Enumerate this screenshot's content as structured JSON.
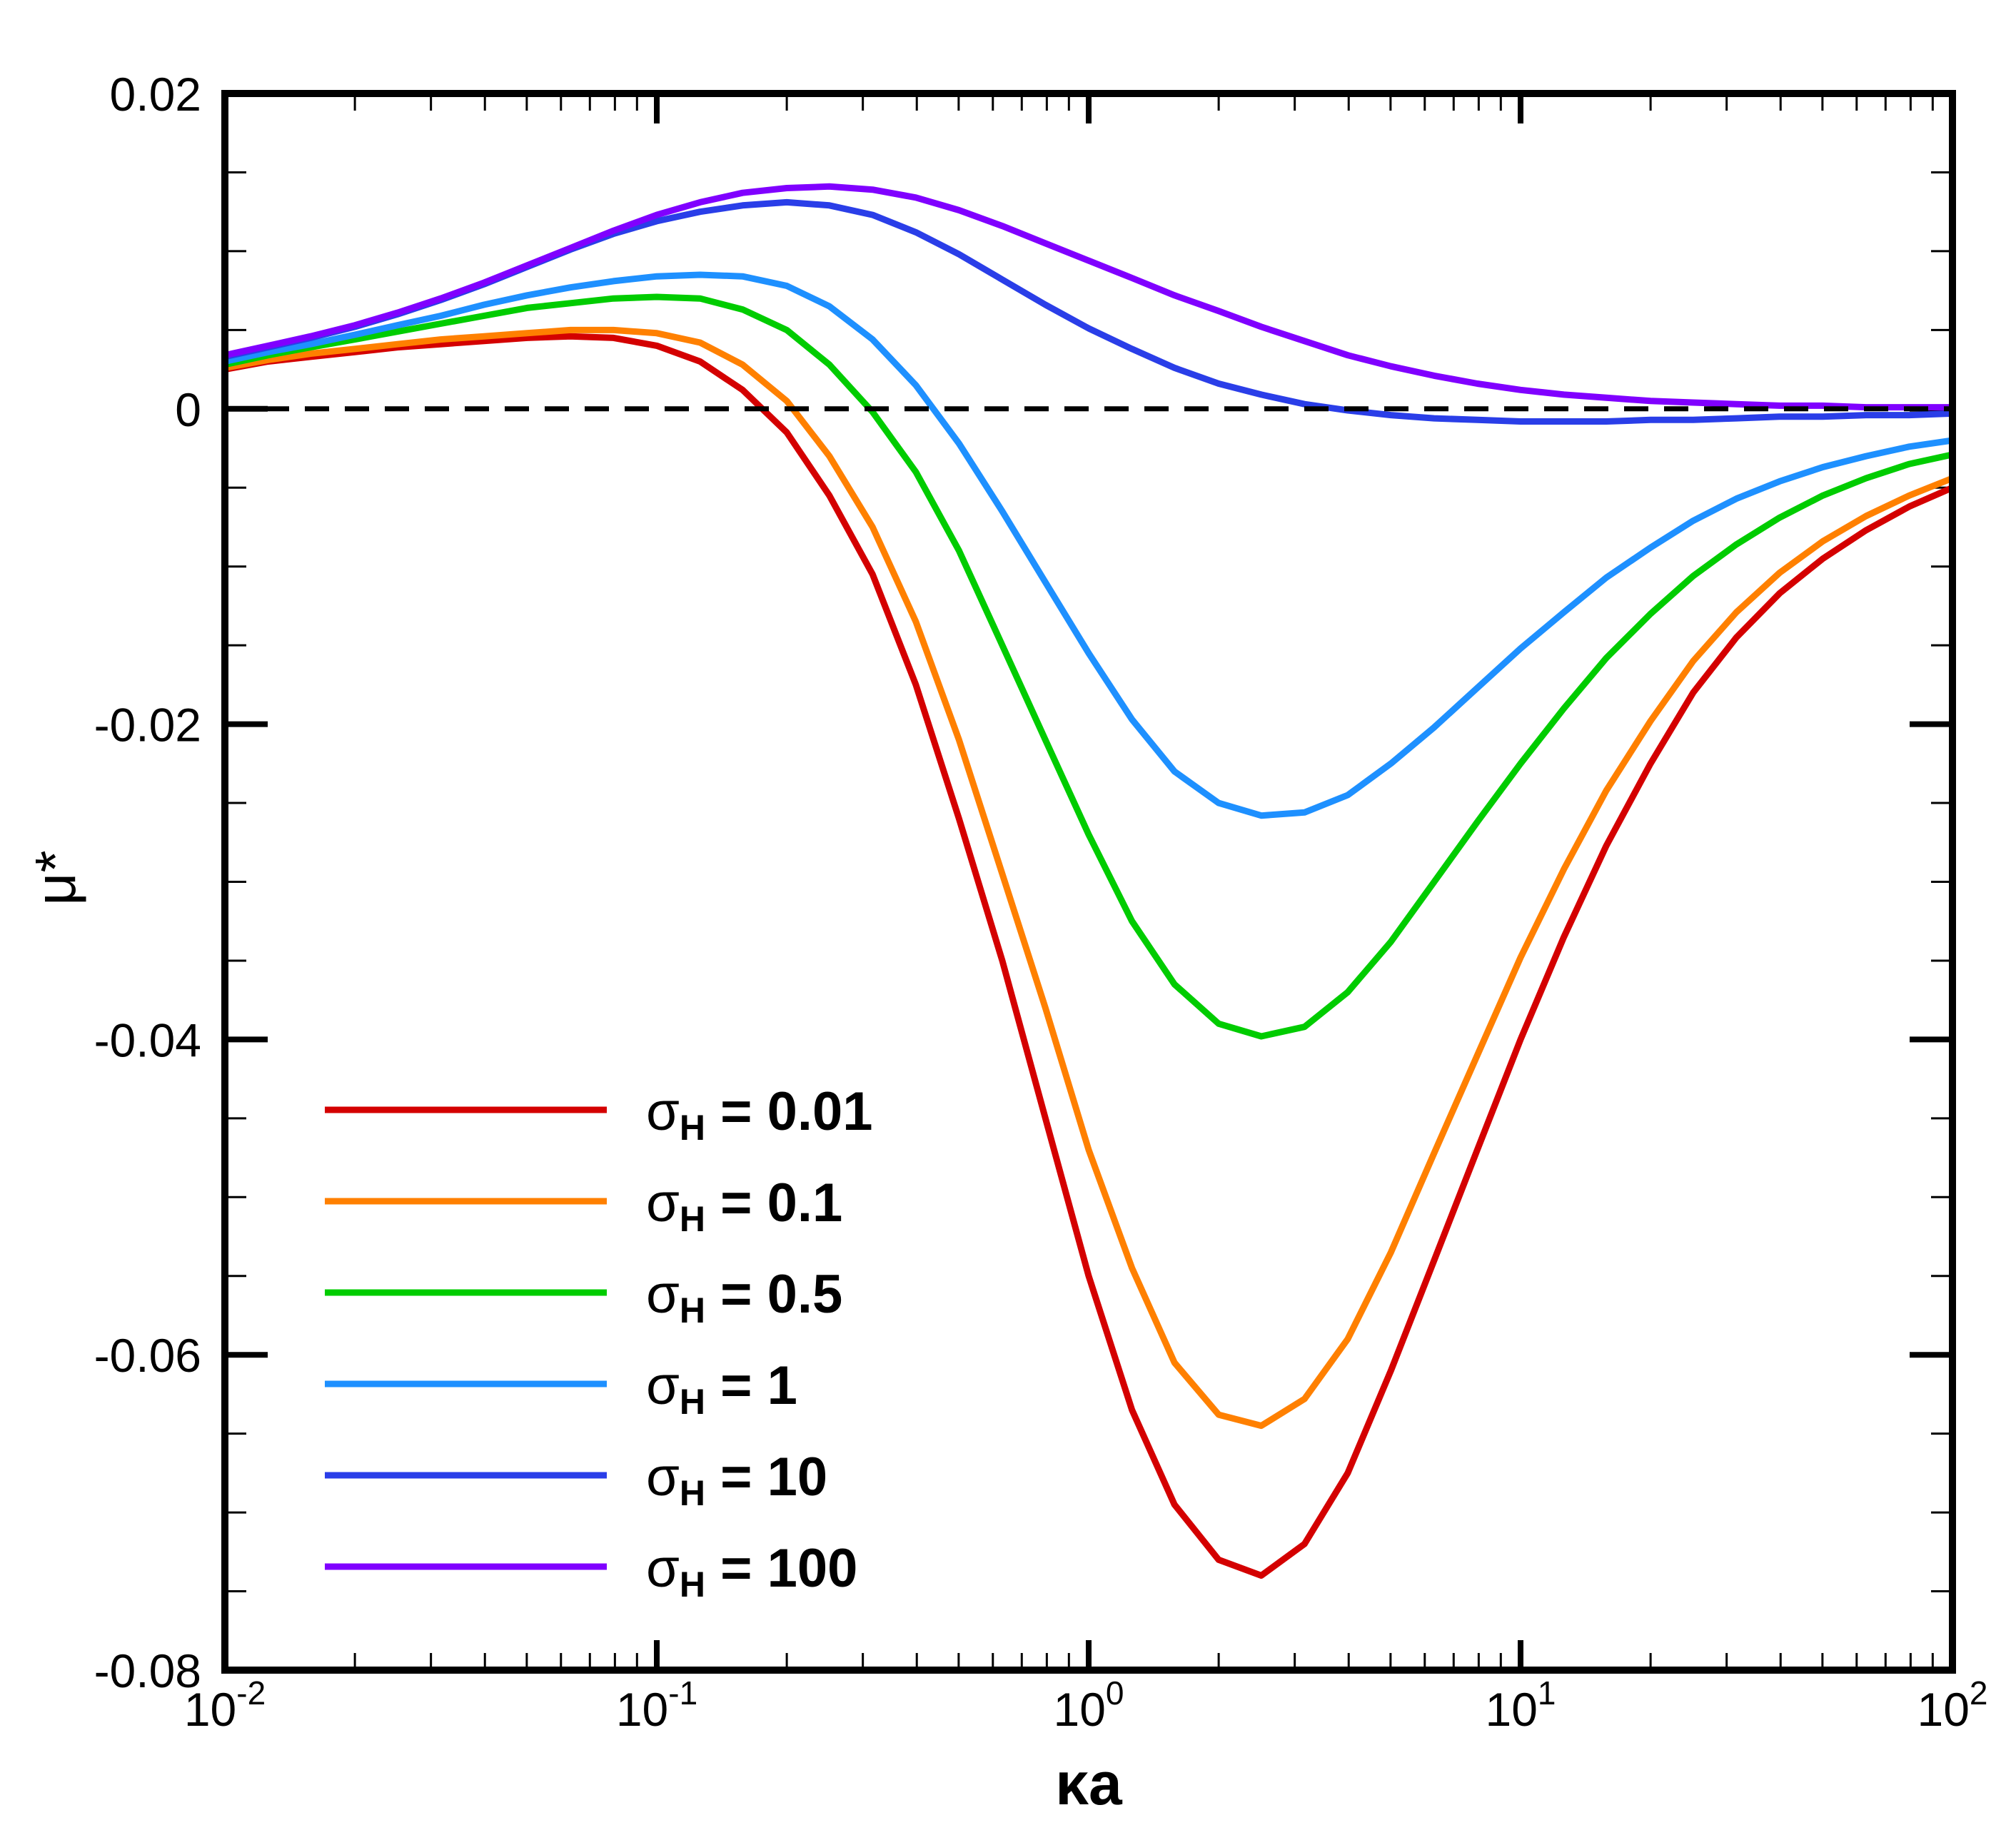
{
  "chart_data": {
    "type": "line",
    "title": "",
    "xlabel": "κa",
    "ylabel": "μ*",
    "xscale": "log",
    "xlim": [
      0.01,
      100
    ],
    "ylim": [
      -0.08,
      0.02
    ],
    "grid": false,
    "legend_position": "bottom-left",
    "x_ticks": [
      {
        "base": "10",
        "exp": "-2"
      },
      {
        "base": "10",
        "exp": "-1"
      },
      {
        "base": "10",
        "exp": "0"
      },
      {
        "base": "10",
        "exp": "1"
      },
      {
        "base": "10",
        "exp": "2"
      }
    ],
    "y_ticks": [
      "0.02",
      "0",
      "-0.02",
      "-0.04",
      "-0.06",
      "-0.08"
    ],
    "reference_line": {
      "y": 0,
      "style": "dashed",
      "color": "#000000"
    },
    "x": [
      0.01,
      0.0126,
      0.0158,
      0.02,
      0.0251,
      0.0316,
      0.0398,
      0.0501,
      0.0631,
      0.0794,
      0.1,
      0.126,
      0.158,
      0.2,
      0.251,
      0.316,
      0.398,
      0.501,
      0.631,
      0.794,
      1,
      1.26,
      1.58,
      2,
      2.51,
      3.16,
      3.98,
      5.01,
      6.31,
      7.94,
      10,
      12.6,
      15.8,
      20,
      25.1,
      31.6,
      39.8,
      50.1,
      63.1,
      79.4,
      100
    ],
    "series": [
      {
        "name": "σ_H = 0.01",
        "label_main": "σ",
        "label_sub": "H",
        "label_rest": " = 0.01",
        "color": "#d40000",
        "values": [
          0.0025,
          0.003,
          0.0033,
          0.0036,
          0.0039,
          0.0041,
          0.0043,
          0.0045,
          0.0046,
          0.0045,
          0.004,
          0.003,
          0.0012,
          -0.0015,
          -0.0055,
          -0.0105,
          -0.0175,
          -0.026,
          -0.035,
          -0.045,
          -0.055,
          -0.0635,
          -0.0695,
          -0.073,
          -0.074,
          -0.072,
          -0.0675,
          -0.061,
          -0.054,
          -0.047,
          -0.04,
          -0.0335,
          -0.0277,
          -0.0225,
          -0.018,
          -0.0145,
          -0.0117,
          -0.0095,
          -0.0077,
          -0.0062,
          -0.005
        ]
      },
      {
        "name": "σ_H = 0.1",
        "label_main": "σ",
        "label_sub": "H",
        "label_rest": " = 0.1",
        "color": "#ff8000",
        "values": [
          0.0026,
          0.0031,
          0.0035,
          0.0038,
          0.0041,
          0.0044,
          0.0046,
          0.0048,
          0.005,
          0.005,
          0.0048,
          0.0042,
          0.0028,
          0.0005,
          -0.003,
          -0.0075,
          -0.0135,
          -0.021,
          -0.0295,
          -0.038,
          -0.047,
          -0.0545,
          -0.0605,
          -0.0638,
          -0.0645,
          -0.0628,
          -0.059,
          -0.0535,
          -0.0472,
          -0.041,
          -0.0348,
          -0.0292,
          -0.0242,
          -0.0198,
          -0.016,
          -0.0129,
          -0.0104,
          -0.0084,
          -0.0068,
          -0.0055,
          -0.0044
        ]
      },
      {
        "name": "σ_H = 0.5",
        "label_main": "σ",
        "label_sub": "H",
        "label_rest": " = 0.5",
        "color": "#00cc00",
        "values": [
          0.0028,
          0.0034,
          0.0039,
          0.0044,
          0.0049,
          0.0054,
          0.0059,
          0.0064,
          0.0067,
          0.007,
          0.0071,
          0.007,
          0.0063,
          0.005,
          0.0028,
          -0.0002,
          -0.004,
          -0.009,
          -0.015,
          -0.021,
          -0.027,
          -0.0325,
          -0.0365,
          -0.039,
          -0.0398,
          -0.0392,
          -0.037,
          -0.0338,
          -0.03,
          -0.0262,
          -0.0225,
          -0.019,
          -0.0158,
          -0.013,
          -0.0106,
          -0.0086,
          -0.0069,
          -0.0055,
          -0.0044,
          -0.0035,
          -0.0029
        ]
      },
      {
        "name": "σ_H = 1",
        "label_main": "σ",
        "label_sub": "H",
        "label_rest": " = 1",
        "color": "#1e90ff",
        "values": [
          0.003,
          0.0036,
          0.0041,
          0.0047,
          0.0053,
          0.0059,
          0.0066,
          0.0072,
          0.0077,
          0.0081,
          0.0084,
          0.0085,
          0.0084,
          0.0078,
          0.0065,
          0.0044,
          0.0015,
          -0.0022,
          -0.0065,
          -0.011,
          -0.0155,
          -0.0197,
          -0.023,
          -0.025,
          -0.0258,
          -0.0256,
          -0.0245,
          -0.0225,
          -0.0202,
          -0.0177,
          -0.0152,
          -0.0129,
          -0.0107,
          -0.0088,
          -0.0071,
          -0.0057,
          -0.0046,
          -0.0037,
          -0.003,
          -0.0024,
          -0.002
        ]
      },
      {
        "name": "σ_H = 10",
        "label_main": "σ",
        "label_sub": "H",
        "label_rest": " = 10",
        "color": "#2a3ee8",
        "values": [
          0.0033,
          0.0039,
          0.0045,
          0.0052,
          0.006,
          0.0069,
          0.0079,
          0.009,
          0.0101,
          0.0111,
          0.0119,
          0.0125,
          0.0129,
          0.0131,
          0.0129,
          0.0123,
          0.0112,
          0.0098,
          0.0082,
          0.0066,
          0.0051,
          0.0038,
          0.0026,
          0.0016,
          0.0009,
          0.0003,
          -0.0001,
          -0.0004,
          -0.0006,
          -0.0007,
          -0.0008,
          -0.0008,
          -0.0008,
          -0.0007,
          -0.0007,
          -0.0006,
          -0.0005,
          -0.0005,
          -0.0004,
          -0.0004,
          -0.0003
        ]
      },
      {
        "name": "σ_H = 100",
        "label_main": "σ",
        "label_sub": "H",
        "label_rest": " = 100",
        "color": "#8000ff",
        "values": [
          0.0034,
          0.004,
          0.0046,
          0.0053,
          0.0061,
          0.007,
          0.008,
          0.0091,
          0.0102,
          0.0113,
          0.0123,
          0.0131,
          0.0137,
          0.014,
          0.0141,
          0.0139,
          0.0134,
          0.0126,
          0.0116,
          0.0105,
          0.0094,
          0.0083,
          0.0072,
          0.0062,
          0.0052,
          0.0043,
          0.0034,
          0.0027,
          0.0021,
          0.0016,
          0.0012,
          0.0009,
          0.0007,
          0.0005,
          0.0004,
          0.0003,
          0.0002,
          0.0002,
          0.0001,
          0.0001,
          0.0001
        ]
      }
    ]
  }
}
